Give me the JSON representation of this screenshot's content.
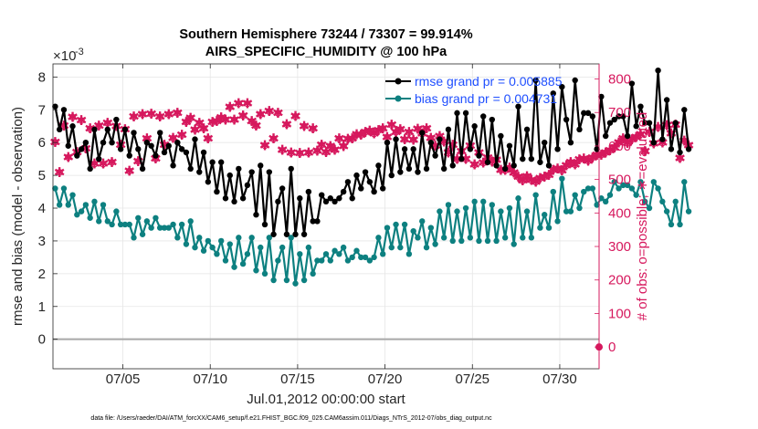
{
  "chart_data": {
    "type": "line",
    "title_line1": "Southern Hemisphere 73244 / 73307 = 99.914%",
    "title_line2": "AIRS_SPECIFIC_HUMIDITY @ 100 hPa",
    "xlabel": "Jul.01,2012 00:00:00 start",
    "ylabel_left": "rmse and bias (model - observation)",
    "ylabel_right": "# of obs: o=possible; ∗=evaluated",
    "y_scale_note": "×10",
    "y_scale_exp": "-3",
    "x_range": [
      1.0,
      32.25
    ],
    "ylim_left": [
      -0.9,
      8.4
    ],
    "ylim_right": [
      -65,
      845
    ],
    "x_ticks": [
      5,
      10,
      15,
      20,
      25,
      30
    ],
    "x_tick_labels": [
      "07/05",
      "07/10",
      "07/15",
      "07/20",
      "07/25",
      "07/30"
    ],
    "y_ticks_left": [
      0,
      1,
      2,
      3,
      4,
      5,
      6,
      7,
      8
    ],
    "y_tick_labels_left": [
      "0",
      "1",
      "2",
      "3",
      "4",
      "5",
      "6",
      "7",
      "8"
    ],
    "y_ticks_right": [
      0,
      100,
      200,
      300,
      400,
      500,
      600,
      700,
      800
    ],
    "y_tick_labels_right": [
      "0",
      "100",
      "200",
      "300",
      "400",
      "500",
      "600",
      "700",
      "800"
    ],
    "legend": {
      "rmse_label": "rmse grand pr = 0.005885",
      "bias_label": "bias grand pr = 0.004731"
    },
    "colors": {
      "rmse": "#000000",
      "bias": "#0d8080",
      "obs": "#d6185d",
      "legend_text": "#1f4fff",
      "grid": "#e6e6e6"
    },
    "series": [
      {
        "name": "rmse",
        "x_start": 1.125,
        "x_step": 0.25,
        "values": [
          7.1,
          6.4,
          7.0,
          5.9,
          6.5,
          5.6,
          5.8,
          6.0,
          5.2,
          6.4,
          5.5,
          6.0,
          6.4,
          6.0,
          6.7,
          5.8,
          6.4,
          5.6,
          6.3,
          5.8,
          5.2,
          6.0,
          5.9,
          5.6,
          6.3,
          5.7,
          5.9,
          5.3,
          6.0,
          5.8,
          5.7,
          5.2,
          6.1,
          5.1,
          5.7,
          4.8,
          5.4,
          4.5,
          5.4,
          4.3,
          5.0,
          4.2,
          5.2,
          4.3,
          4.7,
          5.1,
          3.8,
          5.3,
          3.5,
          5.1,
          3.2,
          4.2,
          4.6,
          3.2,
          5.2,
          3.2,
          4.3,
          3.2,
          4.5,
          3.6,
          3.6,
          4.4,
          4.2,
          4.3,
          4.2,
          4.3,
          4.5,
          4.8,
          4.3,
          5.0,
          4.6,
          5.1,
          4.8,
          4.5,
          5.3,
          4.6,
          6.0,
          5.0,
          6.1,
          5.1,
          5.8,
          5.2,
          5.8,
          5.1,
          6.3,
          5.2,
          6.0,
          5.6,
          6.1,
          5.2,
          6.4,
          5.3,
          6.9,
          5.5,
          6.9,
          5.8,
          6.5,
          5.6,
          6.8,
          5.4,
          6.7,
          5.3,
          6.2,
          5.2,
          5.9,
          5.3,
          7.1,
          5.5,
          6.4,
          5.5,
          7.9,
          5.4,
          6.0,
          5.3,
          7.5,
          5.8,
          7.7,
          6.7,
          6.0,
          7.9,
          6.4,
          6.9,
          6.9,
          6.8,
          5.8,
          7.4,
          6.2,
          6.6,
          6.7,
          6.8,
          6.8,
          6.2,
          7.8,
          6.5,
          7.1,
          6.6,
          6.6,
          6.0,
          8.2,
          6.1,
          7.3,
          5.8,
          6.6,
          5.7,
          7.0,
          5.8
        ]
      },
      {
        "name": "bias",
        "x_start": 1.125,
        "x_step": 0.25,
        "values": [
          4.6,
          4.1,
          4.6,
          4.1,
          4.4,
          3.8,
          3.9,
          4.1,
          3.7,
          4.2,
          3.6,
          4.1,
          3.6,
          3.5,
          3.9,
          3.5,
          3.5,
          3.5,
          3.1,
          3.7,
          3.2,
          3.6,
          3.4,
          3.7,
          3.4,
          3.4,
          3.4,
          3.5,
          3.1,
          3.5,
          2.9,
          3.6,
          2.8,
          3.1,
          2.7,
          3.0,
          2.8,
          2.6,
          3.0,
          2.4,
          2.9,
          2.2,
          3.1,
          2.3,
          2.6,
          3.1,
          2.1,
          2.8,
          2.0,
          3.1,
          1.8,
          2.4,
          2.8,
          1.8,
          3.1,
          1.7,
          2.6,
          1.8,
          2.8,
          2.0,
          2.4,
          2.4,
          2.6,
          2.4,
          2.7,
          2.6,
          2.8,
          2.4,
          2.5,
          2.7,
          2.5,
          2.5,
          2.4,
          2.5,
          3.1,
          2.6,
          3.4,
          2.8,
          3.5,
          2.8,
          3.5,
          2.6,
          3.3,
          3.1,
          3.6,
          2.8,
          3.4,
          2.9,
          3.9,
          3.1,
          4.1,
          3.0,
          3.9,
          3.0,
          4.0,
          3.1,
          4.2,
          3.0,
          4.2,
          3.0,
          4.1,
          3.0,
          3.9,
          3.1,
          4.0,
          2.9,
          4.3,
          3.1,
          3.9,
          3.1,
          4.4,
          3.4,
          3.8,
          3.4,
          4.5,
          3.6,
          4.9,
          3.9,
          3.9,
          4.4,
          4.0,
          4.5,
          4.6,
          4.6,
          4.1,
          4.3,
          4.2,
          4.4,
          4.8,
          4.6,
          4.7,
          4.7,
          4.6,
          4.4,
          4.8,
          4.2,
          4.0,
          4.8,
          4.6,
          4.2,
          3.9,
          3.5,
          4.2,
          3.5,
          4.8,
          3.9
        ]
      },
      {
        "name": "obs_evaluated",
        "x_start": 1.125,
        "x_step": 0.25,
        "values": [
          611,
          521,
          660,
          566,
          686,
          581,
          676,
          591,
          651,
          546,
          660,
          546,
          668,
          551,
          658,
          603,
          649,
          525,
          687,
          554,
          694,
          621,
          695,
          562,
          687,
          603,
          694,
          623,
          698,
          632,
          671,
          683,
          648,
          668,
          652,
          622,
          670,
          673,
          684,
          678,
          716,
          678,
          726,
          690,
          726,
          673,
          660,
          694,
          601,
          703,
          621,
          698,
          587,
          664,
          579,
          688,
          578,
          659,
          579,
          651,
          585,
          603,
          581,
          599,
          588,
          621,
          599,
          620,
          621,
          634,
          632,
          641,
          645,
          636,
          646,
          652,
          626,
          662,
          641,
          649,
          619,
          640,
          618,
          650,
          636,
          651,
          623,
          600,
          628,
          612,
          579,
          602,
          560,
          583,
          560,
          600,
          544,
          579,
          549,
          565,
          552,
          558,
          528,
          527,
          534,
          519,
          507,
          496,
          509,
          497,
          492,
          503,
          507,
          513,
          528,
          532,
          526,
          541,
          551,
          544,
          559,
          561,
          555,
          565,
          573,
          573,
          580,
          586,
          594,
          610,
          622,
          608,
          619,
          626,
          634,
          584,
          640,
          607,
          655,
          609,
          661,
          637,
          662,
          563,
          615,
          601
        ]
      },
      {
        "name": "obs_possible",
        "x_start": 1.125,
        "x_step": 0.25,
        "values": [
          611,
          521,
          660,
          566,
          686,
          581,
          676,
          591,
          651,
          546,
          660,
          546,
          668,
          551,
          658,
          603,
          649,
          525,
          687,
          554,
          694,
          621,
          695,
          562,
          687,
          603,
          694,
          623,
          698,
          632,
          671,
          683,
          648,
          668,
          652,
          622,
          670,
          673,
          684,
          678,
          716,
          678,
          726,
          690,
          726,
          673,
          660,
          694,
          601,
          703,
          621,
          698,
          587,
          664,
          579,
          688,
          578,
          659,
          579,
          651,
          585,
          603,
          581,
          599,
          588,
          621,
          599,
          620,
          621,
          634,
          632,
          641,
          645,
          636,
          646,
          652,
          626,
          662,
          641,
          649,
          619,
          640,
          618,
          650,
          636,
          651,
          623,
          600,
          628,
          612,
          579,
          602,
          560,
          583,
          560,
          600,
          544,
          579,
          549,
          565,
          552,
          558,
          528,
          527,
          534,
          519,
          507,
          496,
          509,
          497,
          492,
          503,
          507,
          513,
          528,
          532,
          526,
          541,
          551,
          544,
          559,
          561,
          555,
          565,
          573,
          573,
          580,
          586,
          594,
          610,
          622,
          608,
          619,
          626,
          634,
          584,
          640,
          607,
          655,
          609,
          661,
          637,
          662,
          563,
          615,
          601
        ]
      }
    ],
    "footnote": "data file: /Users/raeder/DAI/ATM_forcXX/CAM6_setup/f.e21.FHIST_BGC.f09_025.CAM6assim.011/Diags_NTrS_2012-07/obs_diag_output.nc"
  }
}
